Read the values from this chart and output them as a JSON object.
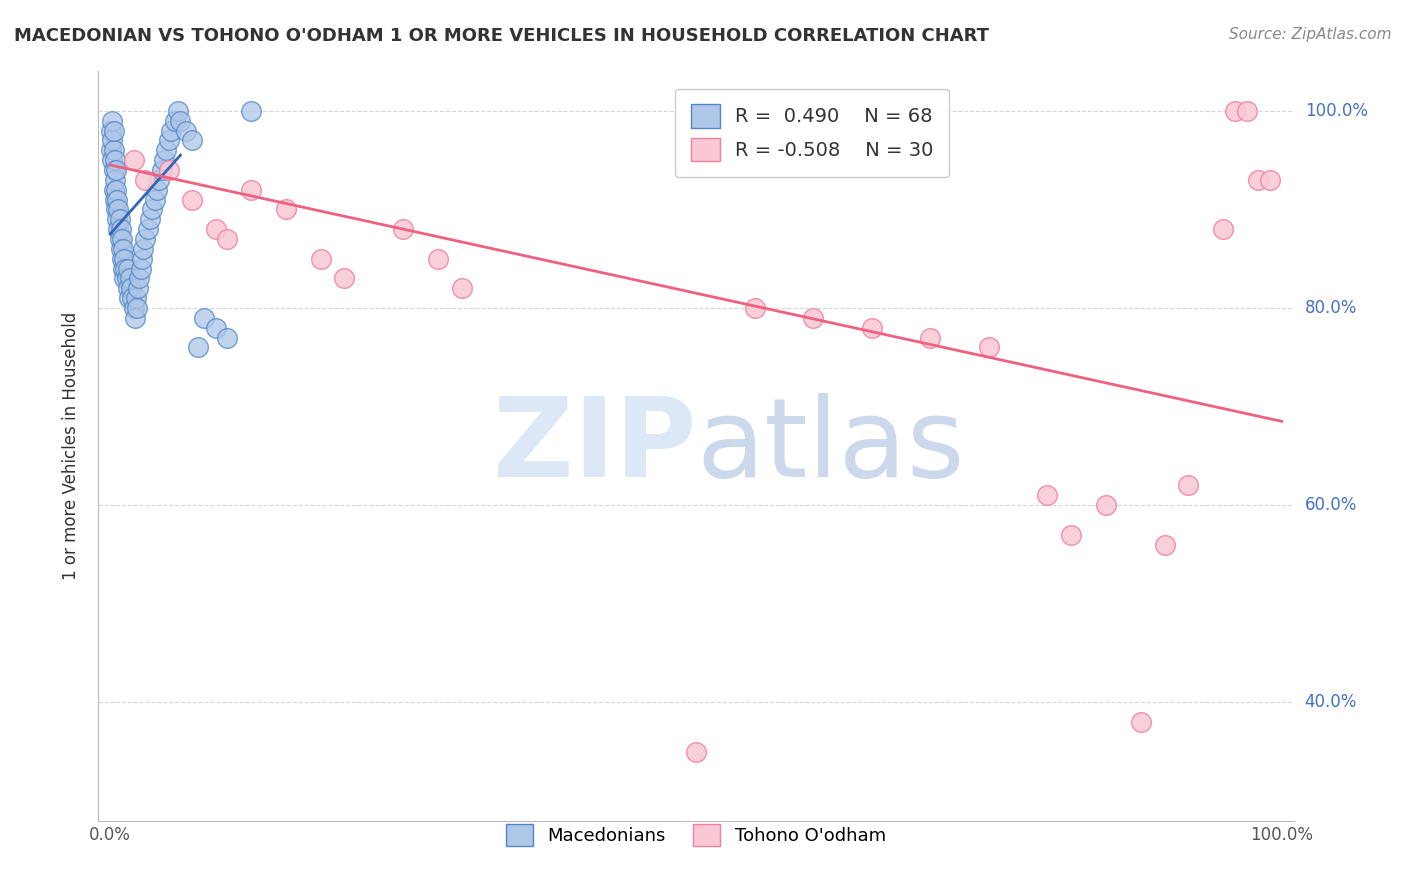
{
  "title": "MACEDONIAN VS TOHONO O'ODHAM 1 OR MORE VEHICLES IN HOUSEHOLD CORRELATION CHART",
  "source": "Source: ZipAtlas.com",
  "ylabel": "1 or more Vehicles in Household",
  "legend_macedonians": "Macedonians",
  "legend_tohono": "Tohono O'odham",
  "R_macedonian": 0.49,
  "N_macedonian": 68,
  "R_tohono": -0.508,
  "N_tohono": 30,
  "macedonian_color": "#aec6e8",
  "macedonian_edge_color": "#4f86c6",
  "tohono_color": "#f9c8d4",
  "tohono_edge_color": "#f080a0",
  "macedonian_trend_color": "#3366bb",
  "tohono_trend_color": "#f06080",
  "background_color": "#ffffff",
  "grid_color": "#cccccc",
  "watermark_zip_color": "#dce8f5",
  "watermark_atlas_color": "#ccd8ec",
  "ylim_low": 0.28,
  "ylim_high": 1.04,
  "xlim_low": -0.01,
  "xlim_high": 1.01,
  "yticks": [
    0.4,
    0.6,
    0.8,
    1.0
  ],
  "ytick_labels": [
    "40.0%",
    "60.0%",
    "80.0%",
    "100.0%"
  ],
  "mac_trend_x0": 0.0,
  "mac_trend_x1": 0.06,
  "mac_trend_y0": 0.875,
  "mac_trend_y1": 0.955,
  "tohono_trend_x0": 0.0,
  "tohono_trend_x1": 1.0,
  "tohono_trend_y0": 0.945,
  "tohono_trend_y1": 0.685,
  "mac_points_x": [
    0.001,
    0.001,
    0.002,
    0.002,
    0.002,
    0.003,
    0.003,
    0.003,
    0.003,
    0.004,
    0.004,
    0.004,
    0.005,
    0.005,
    0.005,
    0.006,
    0.006,
    0.007,
    0.007,
    0.008,
    0.008,
    0.009,
    0.009,
    0.01,
    0.01,
    0.011,
    0.011,
    0.012,
    0.012,
    0.013,
    0.014,
    0.015,
    0.015,
    0.016,
    0.017,
    0.018,
    0.019,
    0.02,
    0.021,
    0.022,
    0.023,
    0.024,
    0.025,
    0.026,
    0.027,
    0.028,
    0.03,
    0.032,
    0.034,
    0.036,
    0.038,
    0.04,
    0.042,
    0.044,
    0.046,
    0.048,
    0.05,
    0.052,
    0.055,
    0.058,
    0.06,
    0.065,
    0.07,
    0.075,
    0.08,
    0.09,
    0.1,
    0.12
  ],
  "mac_points_y": [
    0.96,
    0.98,
    0.95,
    0.97,
    0.99,
    0.92,
    0.94,
    0.96,
    0.98,
    0.91,
    0.93,
    0.95,
    0.9,
    0.92,
    0.94,
    0.89,
    0.91,
    0.88,
    0.9,
    0.87,
    0.89,
    0.86,
    0.88,
    0.85,
    0.87,
    0.84,
    0.86,
    0.83,
    0.85,
    0.84,
    0.83,
    0.82,
    0.84,
    0.81,
    0.83,
    0.82,
    0.81,
    0.8,
    0.79,
    0.81,
    0.8,
    0.82,
    0.83,
    0.84,
    0.85,
    0.86,
    0.87,
    0.88,
    0.89,
    0.9,
    0.91,
    0.92,
    0.93,
    0.94,
    0.95,
    0.96,
    0.97,
    0.98,
    0.99,
    1.0,
    0.99,
    0.98,
    0.97,
    0.76,
    0.79,
    0.78,
    0.77,
    1.0
  ],
  "tohono_points_x": [
    0.02,
    0.03,
    0.05,
    0.07,
    0.09,
    0.1,
    0.12,
    0.15,
    0.18,
    0.2,
    0.25,
    0.28,
    0.3,
    0.5,
    0.55,
    0.6,
    0.65,
    0.7,
    0.75,
    0.8,
    0.82,
    0.85,
    0.88,
    0.9,
    0.92,
    0.95,
    0.96,
    0.97,
    0.98,
    0.99
  ],
  "tohono_points_y": [
    0.95,
    0.93,
    0.94,
    0.91,
    0.88,
    0.87,
    0.92,
    0.9,
    0.85,
    0.83,
    0.88,
    0.85,
    0.82,
    0.35,
    0.8,
    0.79,
    0.78,
    0.77,
    0.76,
    0.61,
    0.57,
    0.6,
    0.38,
    0.56,
    0.62,
    0.88,
    1.0,
    1.0,
    0.93,
    0.93
  ]
}
